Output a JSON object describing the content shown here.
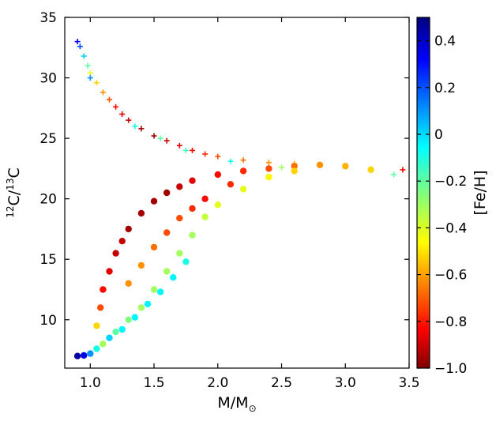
{
  "chart_data": {
    "type": "scatter",
    "xlabel": "M/M",
    "xlabel_subscript": "⊙",
    "ylabel_parts": [
      "12",
      "C/",
      "13",
      "C"
    ],
    "xlim": [
      0.8,
      3.5
    ],
    "ylim": [
      6,
      35
    ],
    "x_ticks": [
      1.0,
      1.5,
      2.0,
      2.5,
      3.0,
      3.5
    ],
    "x_tick_labels": [
      "1.0",
      "1.5",
      "2.0",
      "2.5",
      "3.0",
      "3.5"
    ],
    "y_ticks": [
      10,
      15,
      20,
      25,
      30,
      35
    ],
    "y_tick_labels": [
      "10",
      "15",
      "20",
      "25",
      "30",
      "35"
    ],
    "grid": false,
    "colorbar": {
      "label": "[Fe/H]",
      "range": [
        -1.0,
        0.5
      ],
      "ticks": [
        0.4,
        0.2,
        0,
        -0.2,
        -0.4,
        -0.6,
        -0.8,
        -1.0
      ],
      "tick_labels": [
        "0.4",
        "0.2",
        "0",
        "−0.2",
        "−0.4",
        "−0.6",
        "−0.8",
        "−1.0"
      ],
      "colormap": "jet"
    },
    "series": [
      {
        "marker": "plus",
        "points": [
          [
            0.9,
            33.0,
            -0.85
          ],
          [
            0.92,
            32.6,
            -0.7
          ],
          [
            0.95,
            31.8,
            -0.5
          ],
          [
            0.98,
            31.0,
            -0.3
          ],
          [
            1.0,
            30.4,
            -0.1
          ],
          [
            1.05,
            29.6,
            0.0
          ],
          [
            1.1,
            28.8,
            0.1
          ],
          [
            1.15,
            28.2,
            0.2
          ],
          [
            1.2,
            27.6,
            0.3
          ],
          [
            1.25,
            27.0,
            0.35
          ],
          [
            1.3,
            26.5,
            0.4
          ],
          [
            1.4,
            25.8,
            0.45
          ],
          [
            1.5,
            25.2,
            0.45
          ],
          [
            1.6,
            24.8,
            0.4
          ],
          [
            1.7,
            24.4,
            0.35
          ],
          [
            1.8,
            24.0,
            0.3
          ],
          [
            1.9,
            23.7,
            0.25
          ],
          [
            2.0,
            23.5,
            0.2
          ],
          [
            2.2,
            23.2,
            0.15
          ],
          [
            2.4,
            23.0,
            0.1
          ],
          [
            2.6,
            22.9,
            0.05
          ],
          [
            2.8,
            22.8,
            0.0
          ],
          [
            3.0,
            22.7,
            -0.05
          ],
          [
            3.2,
            22.5,
            -0.1
          ],
          [
            3.38,
            22.0,
            -0.3
          ],
          [
            3.45,
            22.4,
            0.3
          ],
          [
            1.35,
            26.0,
            -0.4
          ],
          [
            1.55,
            25.0,
            -0.3
          ],
          [
            1.75,
            24.0,
            -0.35
          ],
          [
            2.1,
            23.1,
            -0.4
          ],
          [
            2.5,
            22.6,
            -0.2
          ],
          [
            1.0,
            30.0,
            -0.6
          ]
        ]
      },
      {
        "marker": "circle",
        "points": [
          [
            0.9,
            7.0,
            -0.95
          ],
          [
            0.95,
            7.05,
            -0.85
          ],
          [
            1.0,
            7.2,
            -0.6
          ],
          [
            1.05,
            7.6,
            -0.4
          ],
          [
            1.1,
            8.0,
            -0.2
          ],
          [
            1.05,
            9.5,
            0.0
          ],
          [
            1.08,
            11.0,
            0.2
          ],
          [
            1.1,
            12.5,
            0.3
          ],
          [
            1.15,
            14.0,
            0.35
          ],
          [
            1.2,
            15.5,
            0.4
          ],
          [
            1.25,
            16.5,
            0.4
          ],
          [
            1.3,
            17.5,
            0.45
          ],
          [
            1.4,
            18.8,
            0.45
          ],
          [
            1.5,
            19.8,
            0.45
          ],
          [
            1.6,
            20.5,
            0.45
          ],
          [
            1.7,
            21.0,
            0.4
          ],
          [
            1.8,
            21.5,
            0.35
          ],
          [
            2.0,
            22.0,
            0.3
          ],
          [
            2.2,
            22.3,
            0.25
          ],
          [
            2.4,
            22.5,
            0.2
          ],
          [
            2.6,
            22.7,
            0.15
          ],
          [
            2.8,
            22.8,
            0.1
          ],
          [
            3.0,
            22.7,
            0.05
          ],
          [
            3.2,
            22.4,
            0.0
          ],
          [
            1.2,
            9.0,
            -0.3
          ],
          [
            1.3,
            10.0,
            -0.25
          ],
          [
            1.4,
            11.0,
            -0.2
          ],
          [
            1.5,
            12.5,
            -0.2
          ],
          [
            1.6,
            14.0,
            -0.2
          ],
          [
            1.7,
            15.5,
            -0.2
          ],
          [
            1.8,
            17.0,
            -0.2
          ],
          [
            1.9,
            18.5,
            -0.15
          ],
          [
            2.0,
            19.5,
            -0.1
          ],
          [
            2.2,
            20.8,
            -0.1
          ],
          [
            2.4,
            21.8,
            -0.05
          ],
          [
            2.6,
            22.3,
            0.0
          ],
          [
            1.3,
            13.0,
            0.1
          ],
          [
            1.4,
            14.5,
            0.1
          ],
          [
            1.5,
            16.0,
            0.15
          ],
          [
            1.6,
            17.2,
            0.2
          ],
          [
            1.7,
            18.4,
            0.2
          ],
          [
            1.8,
            19.2,
            0.25
          ],
          [
            1.9,
            20.0,
            0.3
          ],
          [
            2.1,
            21.2,
            0.25
          ],
          [
            1.15,
            8.5,
            -0.5
          ],
          [
            1.25,
            9.2,
            -0.45
          ],
          [
            1.35,
            10.2,
            -0.45
          ],
          [
            1.45,
            11.3,
            -0.45
          ],
          [
            1.55,
            12.3,
            -0.45
          ],
          [
            1.65,
            13.5,
            -0.45
          ],
          [
            1.75,
            14.8,
            -0.4
          ]
        ]
      }
    ]
  }
}
